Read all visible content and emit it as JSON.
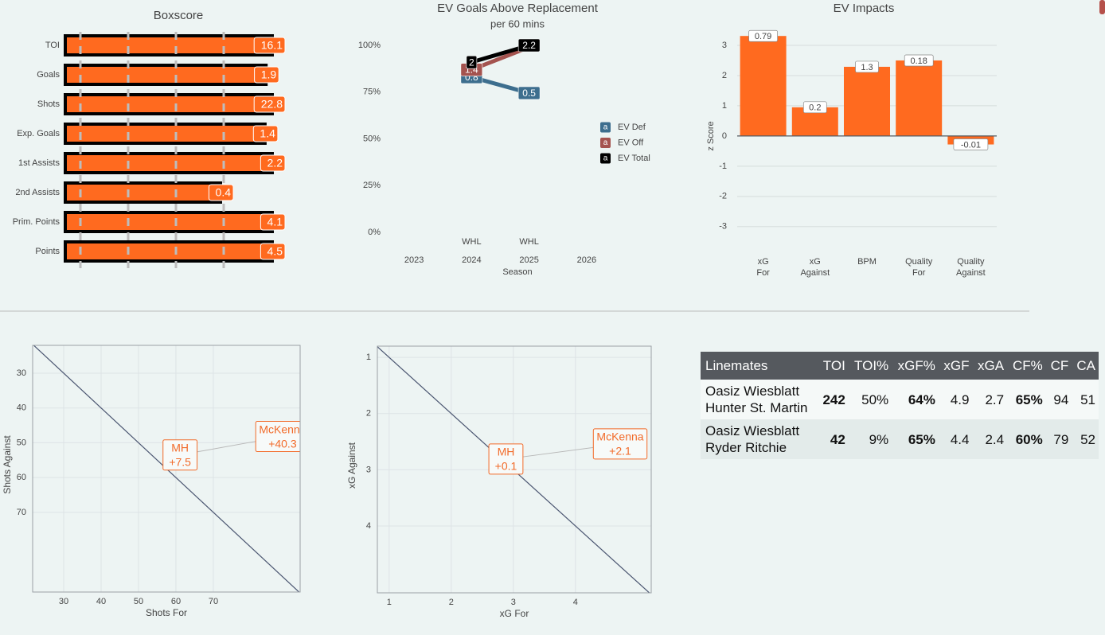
{
  "chart_data": [
    {
      "type": "hbar",
      "title": "Boxscore",
      "categories": [
        "TOI",
        "Goals",
        "Shots",
        "Exp. Goals",
        "1st Assists",
        "2nd Assists",
        "Prim. Points",
        "Points"
      ],
      "values": [
        16.1,
        1.9,
        22.8,
        1.4,
        2.2,
        0.4,
        4.1,
        4.5
      ],
      "percentiles": [
        100,
        97,
        100,
        96.5,
        100,
        75,
        100,
        100
      ],
      "xlim": [
        0,
        100
      ],
      "color": "#ff6a1f"
    },
    {
      "type": "line",
      "title": "EV Goals Above Replacement",
      "subtitle": "per 60 mins",
      "xlabel": "Season",
      "x": [
        2024,
        2025
      ],
      "xlim": [
        2022.5,
        2026.5
      ],
      "xticks": [
        2023,
        2024,
        2025,
        2026
      ],
      "ylim": [
        0,
        100
      ],
      "yticks": [
        {
          "value": 0,
          "label": "0%"
        },
        {
          "value": 25,
          "label": "25%"
        },
        {
          "value": 50,
          "label": "50%"
        },
        {
          "value": 75,
          "label": "75%"
        },
        {
          "value": 100,
          "label": "100%"
        }
      ],
      "legend_key": "a",
      "annotations": [
        {
          "x": 2024,
          "text": "WHL"
        },
        {
          "x": 2025,
          "text": "WHL"
        }
      ],
      "series": [
        {
          "name": "EV Def",
          "color": "#3d6e8e",
          "values": [
            83,
            74.5
          ],
          "gar": [
            0.8,
            0.5
          ]
        },
        {
          "name": "EV Off",
          "color": "#a4534f",
          "values": [
            87,
            99
          ],
          "gar": [
            1.4,
            null
          ]
        },
        {
          "name": "EV Total",
          "color": "#000000",
          "values": [
            91,
            100
          ],
          "gar": [
            2,
            2.2
          ]
        }
      ]
    },
    {
      "type": "bar",
      "title": "EV Impacts",
      "ylabel": "z Score",
      "categories": [
        [
          "xG",
          "For"
        ],
        [
          "xG",
          "Against"
        ],
        [
          "BPM"
        ],
        [
          "Quality",
          "For"
        ],
        [
          "Quality",
          "Against"
        ]
      ],
      "values": [
        3.31,
        0.95,
        2.29,
        2.5,
        -0.28
      ],
      "raw_values": [
        0.79,
        0.2,
        1.3,
        0.18,
        -0.01
      ],
      "ylim": [
        -3.4,
        3.5
      ],
      "yticks": [
        -3,
        -2,
        -1,
        0,
        1,
        2,
        3
      ],
      "grid": true,
      "color": "#ff6a1f"
    },
    {
      "type": "scatter",
      "xlabel": "Shots For",
      "ylabel": "Shots Against",
      "xlim": [
        21.7,
        93.2
      ],
      "ylim": [
        22,
        92.9
      ],
      "y_reversed": true,
      "xticks": [
        30,
        40,
        50,
        60,
        70
      ],
      "yticks": [
        30,
        40,
        50,
        60,
        70
      ],
      "grid": true,
      "color": "#f26b2a",
      "names": [
        "MH",
        "McKenna"
      ],
      "x": [
        61.1,
        88.5
      ],
      "values": [
        53.5,
        48.2
      ],
      "labels": [
        "+7.5",
        "+40.3"
      ]
    },
    {
      "type": "scatter",
      "xlabel": "xG For",
      "ylabel": "xG Against",
      "xlim": [
        0.81,
        5.22
      ],
      "ylim": [
        0.8,
        5.19
      ],
      "y_reversed": true,
      "xticks": [
        1,
        2,
        3,
        4
      ],
      "yticks": [
        1,
        2,
        3,
        4
      ],
      "grid": true,
      "color": "#f26b2a",
      "names": [
        "MH",
        "McKenna"
      ],
      "x": [
        2.88,
        4.72
      ],
      "values": [
        2.81,
        2.54
      ],
      "labels": [
        "+0.1",
        "+2.1"
      ]
    }
  ],
  "table": {
    "header": [
      "Linemates",
      "TOI",
      "TOI%",
      "xGF%",
      "xGF",
      "xGA",
      "CF%",
      "CF",
      "CA"
    ],
    "bold_columns": [
      1,
      3,
      6
    ],
    "rows": [
      [
        [
          "Oasiz Wiesblatt",
          "Hunter St. Martin"
        ],
        242,
        "50%",
        "64%",
        4.9,
        2.7,
        "65%",
        94,
        51
      ],
      [
        [
          "Oasiz Wiesblatt",
          "Ryder Ritchie"
        ],
        42,
        "9%",
        "65%",
        4.4,
        2.4,
        "60%",
        79,
        52
      ]
    ]
  }
}
